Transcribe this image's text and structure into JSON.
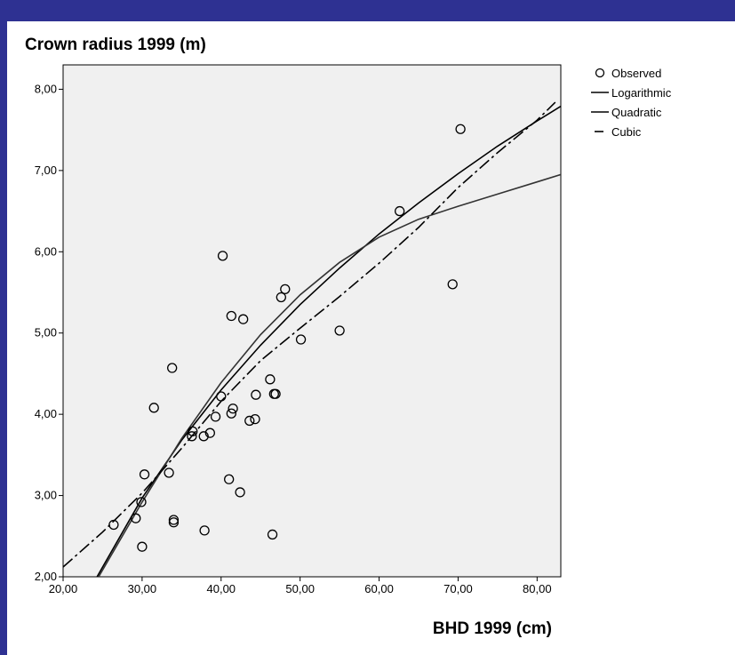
{
  "chart_data": {
    "type": "scatter",
    "ylabel": "Crown radius 1999 (m)",
    "xlabel": "BHD 1999 (cm)",
    "xlim": [
      20,
      83
    ],
    "ylim": [
      2,
      8.3
    ],
    "x_ticks": [
      "20,00",
      "30,00",
      "40,00",
      "50,00",
      "60,00",
      "70,00",
      "80,00"
    ],
    "x_tick_values": [
      20,
      30,
      40,
      50,
      60,
      70,
      80
    ],
    "y_ticks": [
      "2,00",
      "3,00",
      "4,00",
      "5,00",
      "6,00",
      "7,00",
      "8,00"
    ],
    "y_tick_values": [
      2,
      3,
      4,
      5,
      6,
      7,
      8
    ],
    "plot_background": "#f0f0f0",
    "legend": {
      "position": "right",
      "entries": [
        {
          "label": "Observed",
          "style": "circle"
        },
        {
          "label": "Logarithmic",
          "style": "solid"
        },
        {
          "label": "Quadratic",
          "style": "solid"
        },
        {
          "label": "Cubic",
          "style": "dash"
        }
      ]
    },
    "series": [
      {
        "name": "Observed",
        "kind": "points",
        "x": [
          26.4,
          29.2,
          29.9,
          30.0,
          30.3,
          33.4,
          33.8,
          34.0,
          34.0,
          31.5,
          36.3,
          36.4,
          37.8,
          37.9,
          38.6,
          39.3,
          40.0,
          40.2,
          41.0,
          41.3,
          41.3,
          41.5,
          42.4,
          42.8,
          43.6,
          44.3,
          44.4,
          46.2,
          46.5,
          46.7,
          46.9,
          47.6,
          48.1,
          50.1,
          55.0,
          62.6,
          69.3,
          70.3
        ],
        "y": [
          2.64,
          2.72,
          2.92,
          2.37,
          3.26,
          3.28,
          4.57,
          2.7,
          2.67,
          4.08,
          3.73,
          3.79,
          3.73,
          2.57,
          3.77,
          3.97,
          4.22,
          5.95,
          3.2,
          5.21,
          4.01,
          4.07,
          3.04,
          5.17,
          3.92,
          3.94,
          4.24,
          4.43,
          2.52,
          4.25,
          4.25,
          5.44,
          5.54,
          4.92,
          5.03,
          6.5,
          5.6,
          7.51
        ]
      },
      {
        "name": "Logarithmic",
        "kind": "line",
        "style": "solid",
        "x": [
          24.3,
          30,
          35,
          40,
          45,
          50,
          55,
          60,
          65,
          70,
          75,
          80,
          83
        ],
        "y": [
          2.0,
          2.97,
          3.68,
          4.3,
          4.85,
          5.35,
          5.8,
          6.22,
          6.6,
          6.96,
          7.3,
          7.61,
          7.79
        ]
      },
      {
        "name": "Quadratic",
        "kind": "line",
        "style": "solid",
        "x": [
          24.5,
          30,
          35,
          40,
          45,
          50,
          55,
          60,
          65,
          70,
          75,
          80,
          83
        ],
        "y": [
          2.0,
          2.92,
          3.7,
          4.39,
          4.98,
          5.47,
          5.87,
          6.18,
          6.4,
          6.56,
          6.71,
          6.86,
          6.95
        ]
      },
      {
        "name": "Cubic",
        "kind": "line",
        "style": "dash",
        "x": [
          20,
          25,
          30,
          35,
          40,
          45,
          50,
          55,
          60,
          65,
          70,
          75,
          80,
          82.3
        ],
        "y": [
          2.12,
          2.55,
          3.03,
          3.58,
          4.16,
          4.66,
          5.06,
          5.45,
          5.86,
          6.3,
          6.79,
          7.22,
          7.62,
          7.84
        ]
      }
    ]
  }
}
